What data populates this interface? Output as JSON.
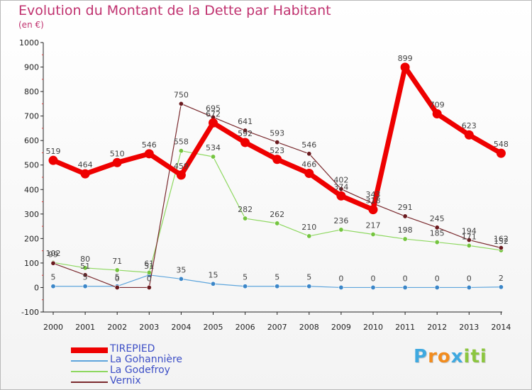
{
  "title": "Evolution du Montant de la Dette par Habitant",
  "unit": "(en €)",
  "brand": {
    "letters": [
      "P",
      "r",
      "o",
      "x",
      "i",
      "t",
      "i"
    ],
    "colors": [
      "#3fa9e0",
      "#f28c1e",
      "#f28c1e",
      "#3fa9e0",
      "#8cc63f",
      "#8cc63f",
      "#8cc63f"
    ]
  },
  "chart_data": {
    "type": "line",
    "x": [
      "2000",
      "2001",
      "2002",
      "2003",
      "2004",
      "2005",
      "2006",
      "2007",
      "2008",
      "2009",
      "2010",
      "2011",
      "2012",
      "2013",
      "2014"
    ],
    "ylim": [
      -100,
      1000
    ],
    "yticks": [
      "-100",
      "0",
      "100",
      "200",
      "300",
      "400",
      "500",
      "600",
      "700",
      "800",
      "900",
      "1000"
    ],
    "grid": false,
    "legend_position": "bottom-left",
    "series": [
      {
        "name": "TIREPIED",
        "color": "#ee0000",
        "pointColor": "#ee0000",
        "width": 7,
        "values": [
          519,
          464,
          510,
          546,
          459,
          672,
          592,
          523,
          466,
          374,
          318,
          899,
          709,
          623,
          548
        ],
        "labels": [
          "519",
          "464",
          "510",
          "546",
          "459",
          "672",
          "592",
          "523",
          "466",
          "374",
          "318",
          "899",
          "709",
          "623",
          "548"
        ]
      },
      {
        "name": "La Gohannière",
        "color": "#5ea5dc",
        "pointColor": "#3b86c8",
        "width": 1.2,
        "values": [
          5,
          5,
          5,
          51,
          35,
          15,
          5,
          5,
          5,
          0,
          0,
          0,
          0,
          0,
          2
        ],
        "labels": [
          "5",
          "5",
          "5",
          "51",
          "35",
          "15",
          "5",
          "5",
          "5",
          "0",
          "0",
          "0",
          "0",
          "0",
          "2"
        ]
      },
      {
        "name": "La Godefroy",
        "color": "#8ed860",
        "pointColor": "#74c43f",
        "width": 1.2,
        "values": [
          102,
          80,
          71,
          61,
          558,
          534,
          282,
          262,
          210,
          236,
          217,
          198,
          185,
          171,
          152
        ],
        "labels": [
          "102",
          "80",
          "71",
          "61",
          "558",
          "534",
          "282",
          "262",
          "210",
          "236",
          "217",
          "198",
          "185",
          "171",
          "152"
        ]
      },
      {
        "name": "Vernix",
        "color": "#7a2a2e",
        "pointColor": "#6a1a1e",
        "width": 1.2,
        "values": [
          99,
          51,
          0,
          0,
          750,
          695,
          641,
          593,
          546,
          402,
          343,
          291,
          245,
          194,
          162
        ],
        "labels": [
          "99",
          "51",
          "0",
          "0",
          "750",
          "695",
          "641",
          "593",
          "546",
          "402",
          "343",
          "291",
          "245",
          "194",
          "162"
        ]
      }
    ]
  }
}
